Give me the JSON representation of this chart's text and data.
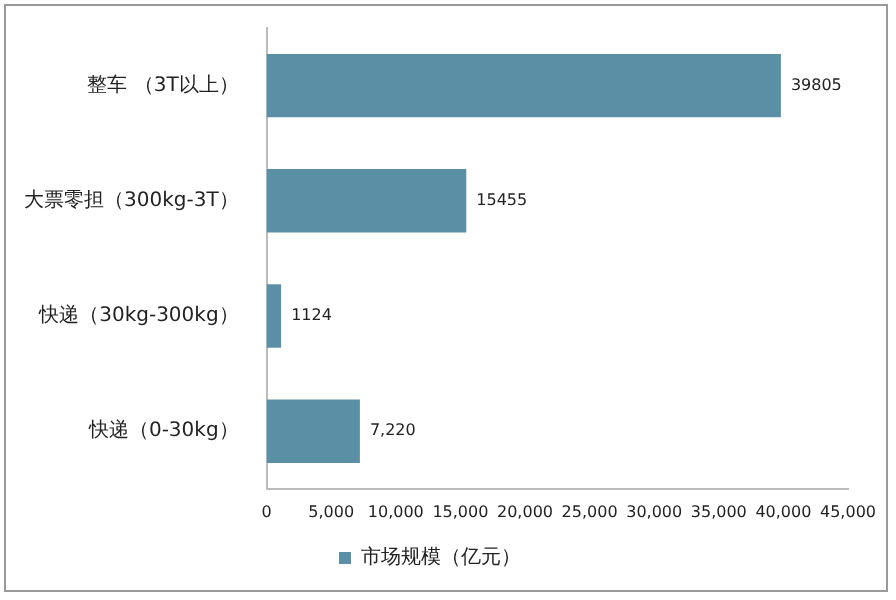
{
  "chart_data": {
    "type": "bar",
    "orientation": "horizontal",
    "categories": [
      "整车 （3T以上）",
      "大票零担（300kg-3T）",
      "快递（30kg-300kg）",
      "快递（0-30kg）"
    ],
    "series": [
      {
        "name": "市场规模（亿元）",
        "color": "#5b8fa6",
        "values": [
          39805,
          15455,
          1124,
          7220
        ],
        "value_labels": [
          "39805",
          "15455",
          "1124",
          "7,220"
        ]
      }
    ],
    "xlim": [
      0,
      45000
    ],
    "xticks": [
      0,
      {
        "value": 5000,
        "label": "5,000"
      },
      {
        "value": 10000,
        "label": "10,000"
      },
      {
        "value": 15000,
        "label": "15,000"
      },
      {
        "value": 20000,
        "label": "20,000"
      },
      {
        "value": 25000,
        "label": "25,000"
      },
      {
        "value": 30000,
        "label": "30,000"
      },
      {
        "value": 35000,
        "label": "35,000"
      },
      {
        "value": 40000,
        "label": "40,000"
      },
      {
        "value": 45000,
        "label": "45,000"
      }
    ],
    "grid": false,
    "legend": "bottom"
  }
}
